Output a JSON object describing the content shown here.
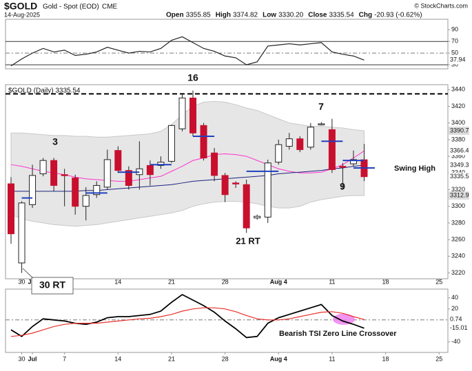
{
  "header": {
    "symbol": "$GOLD",
    "name": "Gold - Spot (EOD)",
    "exchange": "CME",
    "date": "14-Aug-2025",
    "source": "© StockCharts.com",
    "quote": [
      {
        "label": "Open",
        "value": "3355.85"
      },
      {
        "label": "High",
        "value": "3374.82"
      },
      {
        "label": "Low",
        "value": "3330.20"
      },
      {
        "label": "Close",
        "value": "3335.54"
      },
      {
        "label": "Chg",
        "value": "-20.93 (-0.62%)"
      }
    ]
  },
  "chart_data": [
    {
      "type": "line",
      "ylim": [
        23,
        108
      ],
      "yticks": [
        30,
        50,
        70,
        90
      ],
      "levels": [
        30,
        70
      ],
      "midline": 50,
      "series": [
        {
          "color": "#222222",
          "values": [
            28,
            40,
            50,
            58,
            52,
            55,
            46,
            48,
            52,
            60,
            55,
            50,
            53,
            52,
            58,
            72,
            78,
            68,
            58,
            53,
            45,
            42,
            30,
            35,
            62,
            64,
            66,
            64,
            66,
            68,
            52,
            48,
            45,
            37.94
          ],
          "value_label": "37.94"
        }
      ]
    },
    {
      "type": "candlestick",
      "title": "$GOLD (Daily) 3335.54",
      "ylim": [
        3213,
        3446
      ],
      "yticks": [
        3220,
        3240,
        3260,
        3280,
        3300,
        3320,
        3340,
        3360,
        3380,
        3400,
        3420,
        3440
      ],
      "xticks": [
        {
          "value": 1,
          "label": "30"
        },
        {
          "value": 2,
          "label": "Jul"
        },
        {
          "value": 5,
          "label": "7"
        },
        {
          "value": 10,
          "label": "14"
        },
        {
          "value": 15,
          "label": "21"
        },
        {
          "value": 20,
          "label": "28"
        },
        {
          "value": 25,
          "label": "Aug 4"
        },
        {
          "value": 30,
          "label": "11"
        },
        {
          "value": 35,
          "label": "18"
        },
        {
          "value": 40,
          "label": "25"
        }
      ],
      "open": [
        3327,
        3232,
        3302,
        3339,
        3355,
        3338,
        3334,
        3300,
        3314,
        3323,
        3367,
        3343,
        3338,
        3349,
        3349,
        3354,
        3393,
        3430,
        3397,
        3364,
        3337,
        3328,
        3326,
        3286,
        3287,
        3353,
        3372,
        3381,
        3371,
        3399,
        3392,
        3348,
        3351,
        3355.85
      ],
      "high": [
        3335,
        3306,
        3350,
        3358,
        3358,
        3345,
        3338,
        3323,
        3330,
        3368,
        3372,
        3348,
        3378,
        3355,
        3360,
        3398,
        3434,
        3439,
        3400,
        3370,
        3340,
        3330,
        3332,
        3290,
        3356,
        3380,
        3388,
        3384,
        3400,
        3401,
        3405,
        3352,
        3367,
        3374.82
      ],
      "low": [
        3255,
        3220,
        3298,
        3336,
        3318,
        3300,
        3290,
        3283,
        3310,
        3320,
        3340,
        3320,
        3320,
        3325,
        3345,
        3352,
        3390,
        3384,
        3355,
        3330,
        3305,
        3322,
        3268,
        3284,
        3280,
        3350,
        3368,
        3365,
        3368,
        3397,
        3340,
        3320,
        3348,
        3330.2
      ],
      "close": [
        3267,
        3304,
        3337,
        3355,
        3325,
        3337,
        3300,
        3313,
        3325,
        3356,
        3343,
        3325,
        3345,
        3338,
        3353,
        3397,
        3430,
        3388,
        3358,
        3337,
        3314,
        3327,
        3274,
        3288,
        3352,
        3374,
        3381,
        3368,
        3395,
        3399,
        3344,
        3347,
        3356,
        3335.54
      ],
      "close_label": "3335.5",
      "band": {
        "upper": [
          3388,
          3388,
          3387,
          3386,
          3385,
          3385,
          3384,
          3384,
          3383,
          3383,
          3384,
          3385,
          3386,
          3387,
          3390,
          3398,
          3410,
          3420,
          3425,
          3426,
          3425,
          3422,
          3418,
          3415,
          3410,
          3405,
          3400,
          3398,
          3396,
          3396,
          3395,
          3394,
          3392,
          3390.7
        ],
        "upper_label": "3390.7",
        "lower": [
          3290,
          3285,
          3282,
          3280,
          3278,
          3277,
          3276,
          3277,
          3278,
          3280,
          3282,
          3284,
          3286,
          3288,
          3290,
          3292,
          3295,
          3300,
          3303,
          3305,
          3306,
          3306,
          3305,
          3303,
          3300,
          3298,
          3298,
          3300,
          3305,
          3308,
          3310,
          3312,
          3313,
          3312.9
        ],
        "lower_label": "3312.9"
      },
      "overlays": [
        {
          "color": "#ff33cc",
          "values": [
            3350,
            3348,
            3345,
            3342,
            3340,
            3338,
            3335,
            3333,
            3332,
            3331,
            3330,
            3330,
            3332,
            3334,
            3336,
            3342,
            3348,
            3355,
            3358,
            3362,
            3363,
            3362,
            3360,
            3355,
            3350,
            3345,
            3342,
            3340,
            3340,
            3341,
            3345,
            3350,
            3358,
            3366.4
          ],
          "value_label": "3366.4"
        },
        {
          "color": "#1a237e",
          "values": [
            3318,
            3318,
            3318,
            3318,
            3318,
            3318,
            3318,
            3319,
            3319,
            3320,
            3321,
            3322,
            3323,
            3324,
            3325,
            3326,
            3328,
            3330,
            3331,
            3332,
            3333,
            3334,
            3335,
            3336,
            3337,
            3339,
            3340,
            3341,
            3342,
            3343,
            3345,
            3346,
            3348,
            3349.3
          ],
          "value_label": "3349.3"
        }
      ],
      "swing_lines": [
        {
          "start": 1,
          "end": 2,
          "value": 3310
        },
        {
          "start": 7,
          "end": 9,
          "value": 3316
        },
        {
          "start": 10,
          "end": 12,
          "value": 3341
        },
        {
          "start": 13,
          "end": 15,
          "value": 3350
        },
        {
          "start": 17,
          "end": 19,
          "value": 3384
        },
        {
          "start": 22,
          "end": 25,
          "value": 3342
        },
        {
          "start": 29,
          "end": 31,
          "value": 3378
        },
        {
          "start": 31,
          "end": 33,
          "value": 3355
        },
        {
          "start": 32,
          "end": 34,
          "value": 3346
        }
      ],
      "resistance": 3435,
      "annotations": [
        "3",
        "16",
        "7",
        "9",
        "21 RT",
        "30 RT",
        "Swing High"
      ]
    },
    {
      "type": "line",
      "ylim": [
        -59,
        56
      ],
      "yticks": [
        -40,
        20,
        40
      ],
      "series": [
        {
          "color": "#000000",
          "values": [
            -18,
            -30,
            -12,
            2,
            0,
            -2,
            -6,
            -8,
            -4,
            4,
            6,
            6,
            8,
            10,
            16,
            32,
            46,
            36,
            26,
            14,
            -2,
            -16,
            -32,
            -30,
            -6,
            4,
            10,
            16,
            22,
            28,
            8,
            -2,
            -8,
            -15.01
          ],
          "value_label": "-15.01"
        },
        {
          "color": "#e8302a",
          "values": [
            -30,
            -28,
            -24,
            -18,
            -12,
            -8,
            -6,
            -6,
            -6,
            -4,
            -2,
            0,
            2,
            3,
            6,
            10,
            16,
            20,
            22,
            22,
            20,
            15,
            8,
            2,
            0,
            0,
            2,
            6,
            10,
            14,
            15,
            12,
            6,
            0.74
          ],
          "value_label": "0.74"
        }
      ],
      "annotations": [
        "Bearish TSI Zero Line Crossover"
      ]
    }
  ]
}
